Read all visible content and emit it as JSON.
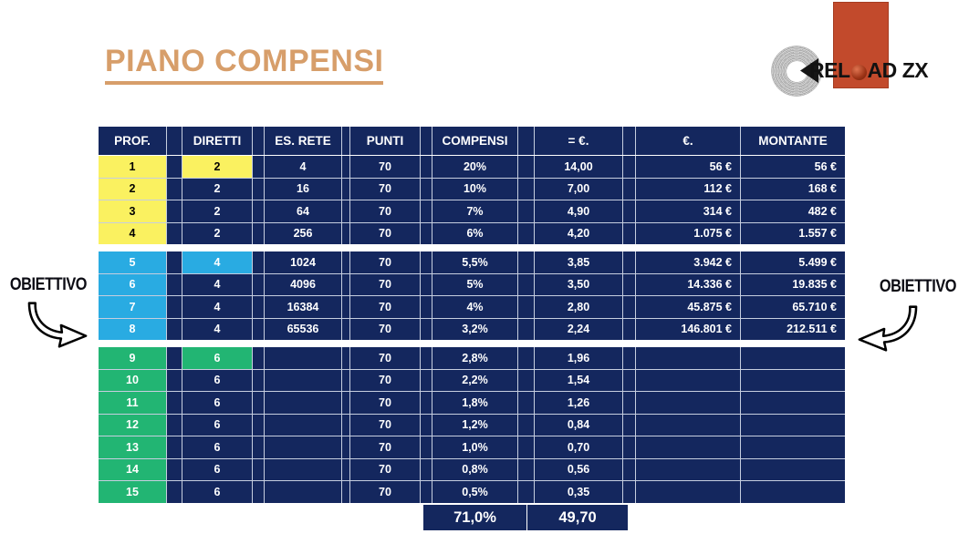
{
  "title": "PIANO COMPENSI",
  "logo": {
    "text_before_o": "REL",
    "text_after_o": "AD",
    "suffix": "ZX",
    "rect_color": "#c24a2c",
    "sphere_color": "#9c3316"
  },
  "obiettivo": {
    "left_label": "OBIETTIVO",
    "right_label": "OBIETTIVO"
  },
  "colors": {
    "navy": "#14275e",
    "yellow": "#faf160",
    "cyan": "#29abe2",
    "green": "#22b573",
    "title_accent": "#d79e6a",
    "grid_line": "#c6cedf"
  },
  "table": {
    "headers": [
      "PROF.",
      "DIRETTI",
      "ES. RETE",
      "PUNTI",
      "COMPENSI",
      "= €.",
      "€.",
      "MONTANTE"
    ],
    "sections": [
      {
        "name": "levels-1-4",
        "highlight_color": "#faf160",
        "highlight_text_color": "#000000",
        "rows": [
          [
            "1",
            "2",
            "4",
            "70",
            "20%",
            "14,00",
            "56 €",
            "56 €"
          ],
          [
            "2",
            "2",
            "16",
            "70",
            "10%",
            "7,00",
            "112 €",
            "168 €"
          ],
          [
            "3",
            "2",
            "64",
            "70",
            "7%",
            "4,90",
            "314 €",
            "482 €"
          ],
          [
            "4",
            "2",
            "256",
            "70",
            "6%",
            "4,20",
            "1.075 €",
            "1.557 €"
          ]
        ]
      },
      {
        "name": "levels-5-8",
        "highlight_color": "#29abe2",
        "highlight_text_color": "#ffffff",
        "rows": [
          [
            "5",
            "4",
            "1024",
            "70",
            "5,5%",
            "3,85",
            "3.942 €",
            "5.499 €"
          ],
          [
            "6",
            "4",
            "4096",
            "70",
            "5%",
            "3,50",
            "14.336 €",
            "19.835 €"
          ],
          [
            "7",
            "4",
            "16384",
            "70",
            "4%",
            "2,80",
            "45.875 €",
            "65.710 €"
          ],
          [
            "8",
            "4",
            "65536",
            "70",
            "3,2%",
            "2,24",
            "146.801 €",
            "212.511 €"
          ]
        ]
      },
      {
        "name": "levels-9-15",
        "highlight_color": "#22b573",
        "highlight_text_color": "#ffffff",
        "rows": [
          [
            "9",
            "6",
            "",
            "70",
            "2,8%",
            "1,96",
            "",
            ""
          ],
          [
            "10",
            "6",
            "",
            "70",
            "2,2%",
            "1,54",
            "",
            ""
          ],
          [
            "11",
            "6",
            "",
            "70",
            "1,8%",
            "1,26",
            "",
            ""
          ],
          [
            "12",
            "6",
            "",
            "70",
            "1,2%",
            "0,84",
            "",
            ""
          ],
          [
            "13",
            "6",
            "",
            "70",
            "1,0%",
            "0,70",
            "",
            ""
          ],
          [
            "14",
            "6",
            "",
            "70",
            "0,8%",
            "0,56",
            "",
            ""
          ],
          [
            "15",
            "6",
            "",
            "70",
            "0,5%",
            "0,35",
            "",
            ""
          ]
        ]
      }
    ],
    "totals": {
      "compensi_total": "71,0%",
      "eq_total": "49,70"
    }
  }
}
